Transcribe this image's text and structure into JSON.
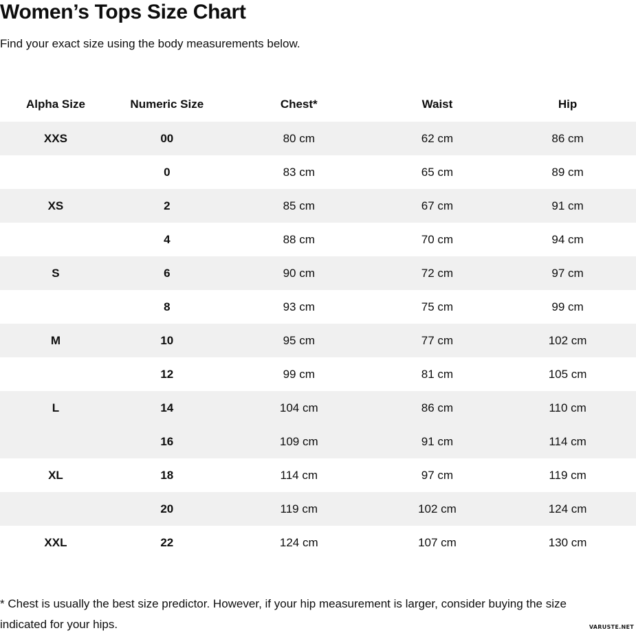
{
  "page": {
    "title": "Women’s Tops Size Chart",
    "subtitle": "Find your exact size using the body measurements below.",
    "footnote": "* Chest is usually the best size predictor. However, if your hip measurement is larger, consider buying the size indicated for your hips.",
    "watermark": "VARUSTE.NET"
  },
  "colors": {
    "stripe": "#f0f0f0",
    "text": "#0d0d0d",
    "background": "#ffffff"
  },
  "chart_data": {
    "type": "table",
    "title": "Women’s Tops Size Chart",
    "columns": [
      "Alpha Size",
      "Numeric Size",
      "Chest*",
      "Waist",
      "Hip"
    ],
    "unit": "cm",
    "rows": [
      {
        "alpha": "XXS",
        "numeric": "00",
        "chest": "80 cm",
        "waist": "62 cm",
        "hip": "86 cm",
        "shaded": true
      },
      {
        "alpha": "",
        "numeric": "0",
        "chest": "83 cm",
        "waist": "65 cm",
        "hip": "89 cm",
        "shaded": false
      },
      {
        "alpha": "XS",
        "numeric": "2",
        "chest": "85 cm",
        "waist": "67 cm",
        "hip": "91 cm",
        "shaded": true
      },
      {
        "alpha": "",
        "numeric": "4",
        "chest": "88 cm",
        "waist": "70 cm",
        "hip": "94 cm",
        "shaded": false
      },
      {
        "alpha": "S",
        "numeric": "6",
        "chest": "90 cm",
        "waist": "72 cm",
        "hip": "97 cm",
        "shaded": true
      },
      {
        "alpha": "",
        "numeric": "8",
        "chest": "93 cm",
        "waist": "75 cm",
        "hip": "99 cm",
        "shaded": false
      },
      {
        "alpha": "M",
        "numeric": "10",
        "chest": "95 cm",
        "waist": "77 cm",
        "hip": "102 cm",
        "shaded": true
      },
      {
        "alpha": "",
        "numeric": "12",
        "chest": "99 cm",
        "waist": "81 cm",
        "hip": "105 cm",
        "shaded": false
      },
      {
        "alpha": "L",
        "numeric": "14",
        "chest": "104 cm",
        "waist": "86 cm",
        "hip": "110 cm",
        "shaded": true
      },
      {
        "alpha": "",
        "numeric": "16",
        "chest": "109 cm",
        "waist": "91 cm",
        "hip": "114 cm",
        "shaded": true
      },
      {
        "alpha": "XL",
        "numeric": "18",
        "chest": "114 cm",
        "waist": "97 cm",
        "hip": "119 cm",
        "shaded": false
      },
      {
        "alpha": "",
        "numeric": "20",
        "chest": "119 cm",
        "waist": "102 cm",
        "hip": "124 cm",
        "shaded": true
      },
      {
        "alpha": "XXL",
        "numeric": "22",
        "chest": "124 cm",
        "waist": "107 cm",
        "hip": "130 cm",
        "shaded": false
      }
    ]
  }
}
